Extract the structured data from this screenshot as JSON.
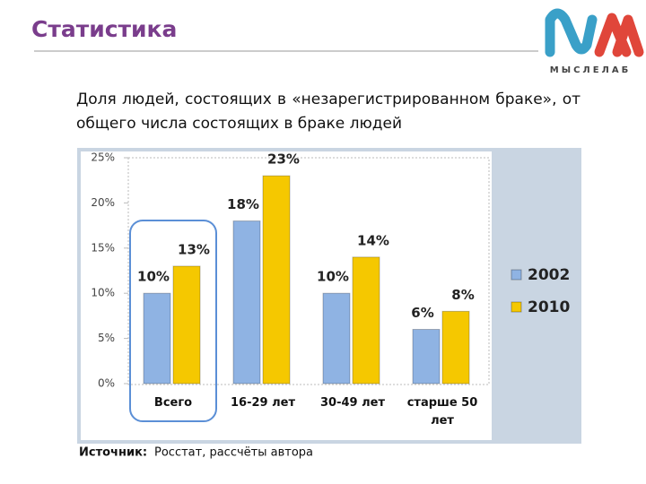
{
  "page": {
    "title": "Статистика",
    "logo": "МЫСЛЕЛАБ",
    "subtitle": "Доля людей, состоящих в «незарегистрированном браке», от общего числа состоящих в браке людей",
    "source_label": "Источник:",
    "source_text": "Росстат, рассчёты автора"
  },
  "chart_data": {
    "type": "bar",
    "categories": [
      "Всего",
      "16-29 лет",
      "30-49 лет",
      "старше 50 лет"
    ],
    "series": [
      {
        "name": "2002",
        "color": "#8fb3e3",
        "values": [
          10,
          18,
          10,
          6
        ],
        "value_labels": [
          "10%",
          "18%",
          "10%",
          "6%"
        ]
      },
      {
        "name": "2010",
        "color": "#f5c800",
        "values": [
          13,
          23,
          14,
          8
        ],
        "value_labels": [
          "13%",
          "23%",
          "14%",
          "8%"
        ]
      }
    ],
    "ylim": [
      0,
      25
    ],
    "yticks": [
      {
        "value": 0,
        "label": "0%"
      },
      {
        "value": 5,
        "label": "5%"
      },
      {
        "value": 10,
        "label": "10%"
      },
      {
        "value": 15,
        "label": "15%"
      },
      {
        "value": 20,
        "label": "20%"
      },
      {
        "value": 25,
        "label": "25%"
      }
    ],
    "grid": false,
    "legend": "right"
  }
}
